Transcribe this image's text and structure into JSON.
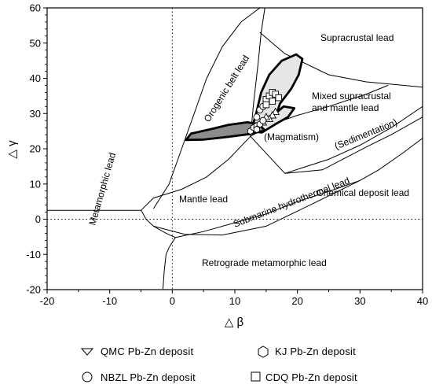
{
  "chart_data": {
    "type": "scatter",
    "xlabel": "△ β",
    "ylabel": "△ γ",
    "xlim": [
      -20,
      40
    ],
    "ylim": [
      -20,
      60
    ],
    "x_ticks": [
      -20,
      -10,
      0,
      10,
      20,
      30,
      40
    ],
    "y_ticks": [
      -20,
      -10,
      0,
      10,
      20,
      30,
      40,
      50,
      60
    ],
    "x_tick_labels": [
      "-20",
      "-10",
      "0",
      "10",
      "20",
      "30",
      "40"
    ],
    "y_tick_labels": [
      "-20",
      "-10",
      "0",
      "10",
      "20",
      "30",
      "40",
      "50",
      "60"
    ],
    "field_labels": {
      "supracrustal": "Supracrustal lead",
      "orogenic": "Orogenic belt lead",
      "mixed_line1": "Mixed supracrustal",
      "mixed_line2": "and mantle lead",
      "magmatism": "(Magmatism)",
      "sedimentation": "(Sedimentation)",
      "metamorphic": "Metamorphic lead",
      "mantle": "Mantle lead",
      "submarine": "Submarine hydrothermal lead",
      "chemical": "Chemical deposit lead",
      "retrograde": "Retrograde metamorphic lead"
    },
    "series": [
      {
        "name": "QMC Pb-Zn deposit",
        "marker": "triangle",
        "points": [
          [
            16.5,
            30.5
          ],
          [
            16,
            29.5
          ],
          [
            15.5,
            28.5
          ],
          [
            15,
            29
          ],
          [
            14.5,
            27.5
          ]
        ]
      },
      {
        "name": "KJ Pb-Zn deposit",
        "marker": "hexagon",
        "points": [
          [
            12.5,
            25
          ],
          [
            13,
            26
          ],
          [
            13.5,
            26.5
          ],
          [
            14,
            27
          ],
          [
            13.5,
            25.5
          ]
        ]
      },
      {
        "name": "NBZL Pb-Zn deposit",
        "marker": "circle",
        "points": [
          [
            14,
            31
          ],
          [
            14.5,
            32
          ],
          [
            15,
            33
          ],
          [
            14.5,
            28
          ],
          [
            13.5,
            29
          ]
        ]
      },
      {
        "name": "CDQ Pb-Zn deposit",
        "marker": "square",
        "points": [
          [
            15,
            34
          ],
          [
            15.5,
            35
          ],
          [
            16,
            36
          ],
          [
            16.5,
            35.5
          ],
          [
            15,
            32.5
          ],
          [
            16,
            33.5
          ],
          [
            17,
            34.5
          ]
        ]
      }
    ],
    "legend": {
      "placement": "bottom",
      "items": [
        {
          "label": "QMC  Pb-Zn deposit",
          "marker": "triangle"
        },
        {
          "label": "KJ  Pb-Zn deposit",
          "marker": "hexagon"
        },
        {
          "label": "NBZL  Pb-Zn deposit",
          "marker": "circle"
        },
        {
          "label": "CDQ  Pb-Zn deposit",
          "marker": "square"
        }
      ]
    },
    "colors": {
      "grey_region": "#8c8c8c",
      "light_region": "#e6e6e6",
      "line": "#000000"
    }
  }
}
